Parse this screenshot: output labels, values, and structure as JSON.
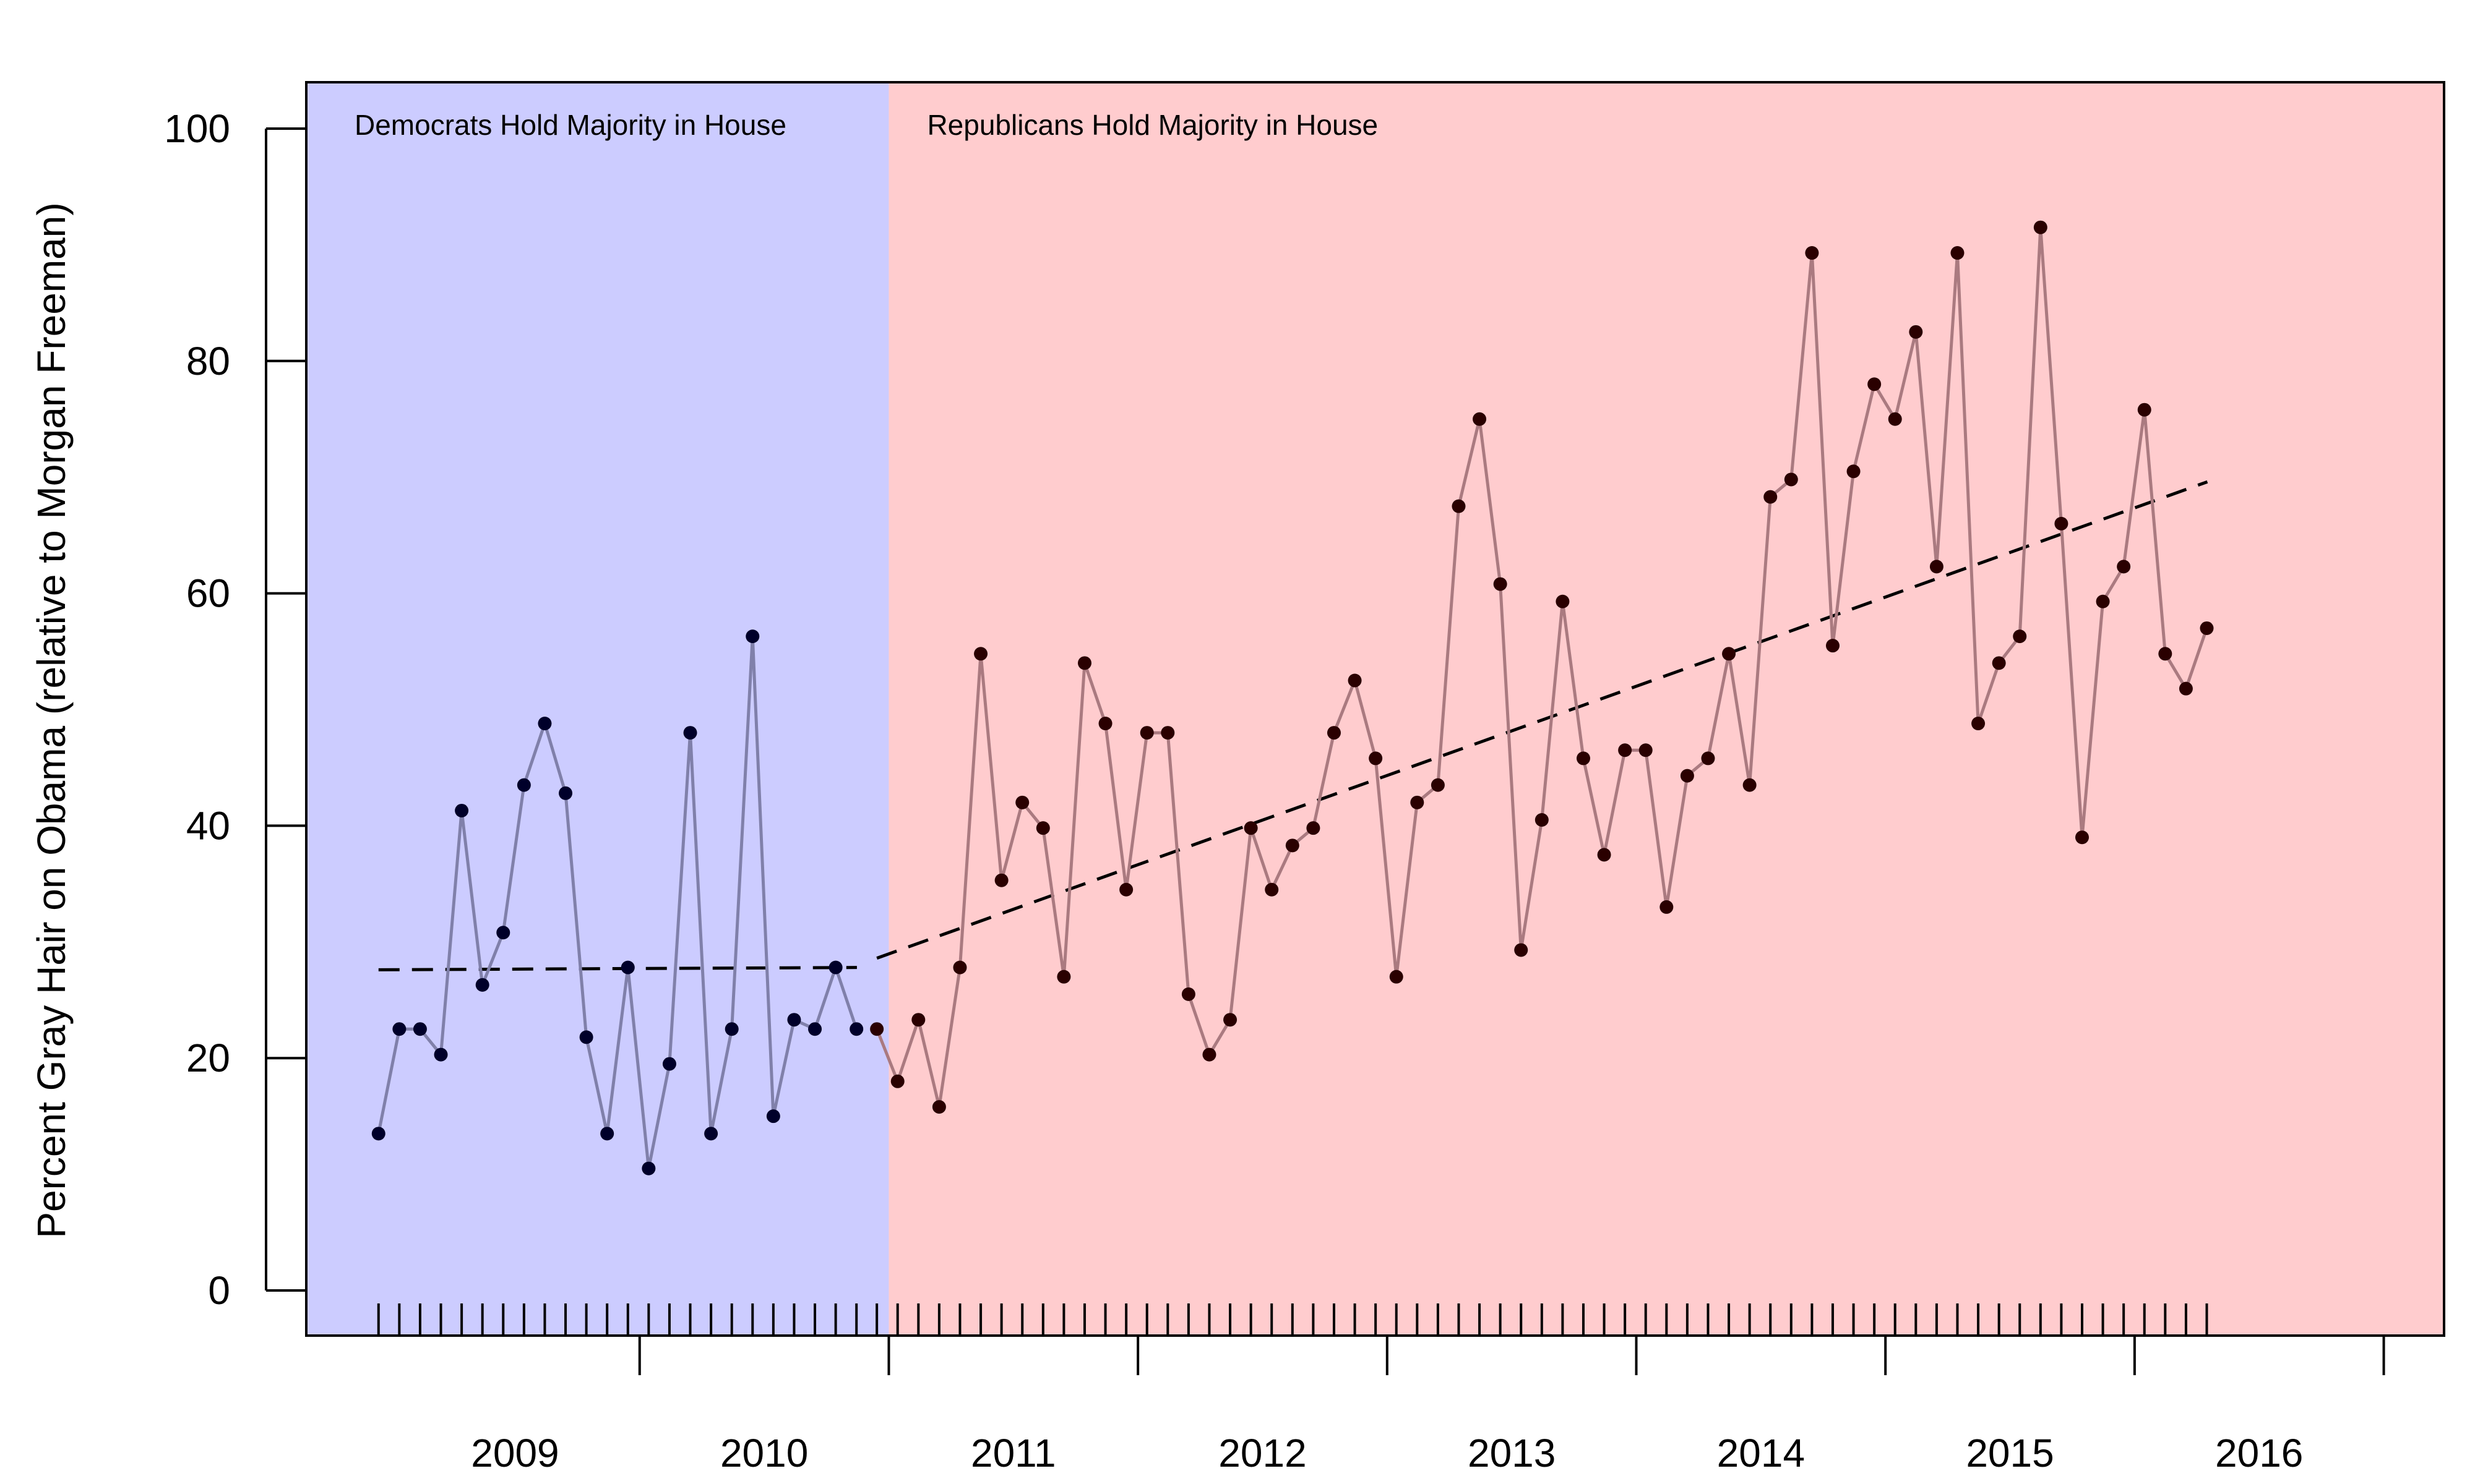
{
  "chart_data": {
    "type": "line",
    "ylabel": "Percent Gray Hair on Obama (relative to Morgan Freeman)",
    "xlabel": "",
    "ylim": [
      0,
      100
    ],
    "y_ticks": [
      0,
      20,
      40,
      60,
      80,
      100
    ],
    "x_range": [
      2008.12,
      2016.7
    ],
    "year_labels": [
      {
        "label": "2009",
        "x": 2008.958
      },
      {
        "label": "2010",
        "x": 2009.958
      },
      {
        "label": "2011",
        "x": 2010.958
      },
      {
        "label": "2012",
        "x": 2011.958
      },
      {
        "label": "2013",
        "x": 2012.958
      },
      {
        "label": "2014",
        "x": 2013.958
      },
      {
        "label": "2015",
        "x": 2014.958
      },
      {
        "label": "2016",
        "x": 2015.958
      }
    ],
    "major_ticks": [
      2009.458,
      2010.458,
      2011.458,
      2012.458,
      2013.458,
      2014.458,
      2015.458,
      2016.458
    ],
    "regions": [
      {
        "label": "Democrats Hold Majority in House",
        "x_start": 2008.12,
        "x_end": 2010.458,
        "color": "#ccccff"
      },
      {
        "label": "Republicans Hold Majority in House",
        "x_start": 2010.458,
        "x_end": 2016.7,
        "color": "#ffccce"
      }
    ],
    "series": [
      {
        "period": "democrat",
        "line_color": "#8080aa",
        "point_color": "#00002a",
        "x_start": 2008.41,
        "x_step": 0.0834,
        "values": [
          13.5,
          22.5,
          22.5,
          20.3,
          41.3,
          26.3,
          30.8,
          43.5,
          48.8,
          42.8,
          21.8,
          13.5,
          27.8,
          10.5,
          19.5,
          48.0,
          13.5,
          22.5,
          56.3,
          15.0,
          23.3,
          22.5,
          27.8,
          22.5
        ]
      },
      {
        "period": "republican",
        "line_color": "#aa7a80",
        "point_color": "#2a0000",
        "x_start": 2010.41,
        "x_step": 0.0834,
        "values": [
          22.5,
          18.0,
          23.3,
          15.8,
          27.8,
          54.8,
          35.3,
          42.0,
          39.8,
          27.0,
          54.0,
          48.8,
          34.5,
          48.0,
          48.0,
          25.5,
          20.3,
          23.3,
          39.8,
          34.5,
          38.3,
          39.8,
          48.0,
          52.5,
          45.8,
          27.0,
          42.0,
          43.5,
          67.5,
          75.0,
          60.8,
          29.3,
          40.5,
          59.3,
          45.8,
          37.5,
          46.5,
          46.5,
          33.0,
          44.3,
          45.8,
          54.8,
          43.5,
          68.3,
          69.8,
          89.3,
          55.5,
          70.5,
          78.0,
          75.0,
          82.5,
          62.3,
          89.3,
          48.8,
          54.0,
          56.3,
          91.5,
          66.0,
          39.0,
          59.3,
          62.3,
          75.8,
          54.8,
          51.8,
          57.0
        ]
      }
    ],
    "trend_lines": [
      {
        "period": "democrat",
        "x": [
          2008.41,
          2010.33
        ],
        "y": [
          27.6,
          27.8
        ]
      },
      {
        "period": "republican",
        "x": [
          2010.41,
          2015.75
        ],
        "y": [
          28.6,
          69.6
        ]
      }
    ]
  }
}
